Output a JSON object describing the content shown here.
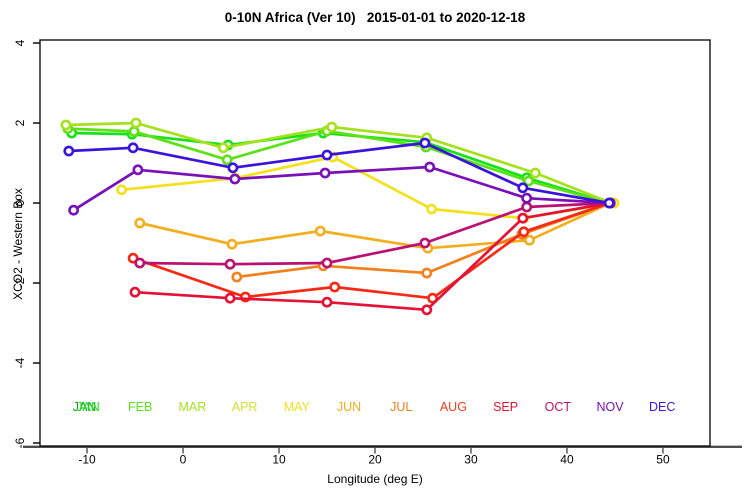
{
  "title": "0-10N Africa (Ver 10)   2015-01-01 to 2020-12-18",
  "chart_data": {
    "type": "line",
    "title": "0-10N Africa (Ver 10)   2015-01-01 to 2020-12-18",
    "xlabel": "Longitude (deg E)",
    "ylabel": "XCO2 - Western Box",
    "xlim": [
      -14.9,
      54.9
    ],
    "ylim": [
      -6.075,
      4.075
    ],
    "x_ticks": [
      -10,
      0,
      10,
      20,
      30,
      40,
      50
    ],
    "y_ticks": [
      -6,
      -4,
      -2,
      0,
      2,
      4
    ],
    "grid": false,
    "marker": "open-circle",
    "legend_position": "inside-bottom",
    "legend_y_value": -5.1,
    "months": [
      {
        "label": "JAN",
        "color": "#17E117",
        "double_printed": true,
        "shadow_color": "#0E9E0E"
      },
      {
        "label": "FEB",
        "color": "#5CE117"
      },
      {
        "label": "MAR",
        "color": "#A5E11C"
      },
      {
        "label": "APR",
        "color": "#D6E12E"
      },
      {
        "label": "MAY",
        "color": "#F2E11C"
      },
      {
        "label": "JUN",
        "color": "#F2AE1C"
      },
      {
        "label": "JUL",
        "color": "#F2801C"
      },
      {
        "label": "AUG",
        "color": "#F23D1C"
      },
      {
        "label": "SEP",
        "color": "#E8152E"
      },
      {
        "label": "OCT",
        "color": "#BB1272"
      },
      {
        "label": "NOV",
        "color": "#7A10B8"
      },
      {
        "label": "DEC",
        "color": "#3A14DD"
      }
    ],
    "series": [
      {
        "name": "JAN",
        "color": "#17E117",
        "points": [
          [
            -11.6,
            1.75
          ],
          [
            -5.3,
            1.72
          ],
          [
            4.7,
            1.45
          ],
          [
            14.6,
            1.75
          ],
          [
            25.2,
            1.52
          ],
          [
            35.8,
            0.63
          ],
          [
            44.4,
            0.0
          ]
        ]
      },
      {
        "name": "FEB",
        "color": "#5CE117",
        "points": [
          [
            -12.0,
            1.86
          ],
          [
            -5.1,
            1.79
          ],
          [
            4.6,
            1.08
          ],
          [
            15.0,
            1.8
          ],
          [
            25.3,
            1.4
          ],
          [
            36.0,
            0.55
          ],
          [
            44.4,
            0.0
          ]
        ]
      },
      {
        "name": "MAR",
        "color": "#A5E11C",
        "points": [
          [
            -12.2,
            1.95
          ],
          [
            -4.9,
            2.0
          ],
          [
            4.2,
            1.38
          ],
          [
            15.5,
            1.9
          ],
          [
            25.4,
            1.63
          ],
          [
            36.7,
            0.75
          ],
          [
            44.6,
            0.0
          ]
        ]
      },
      {
        "name": "MAY",
        "color": "#F2E11C",
        "points": [
          [
            -6.4,
            0.33
          ],
          [
            5.4,
            0.62
          ],
          [
            15.6,
            1.15
          ],
          [
            25.9,
            -0.15
          ],
          [
            35.5,
            -0.38
          ],
          [
            44.9,
            0.0
          ]
        ]
      },
      {
        "name": "JUN",
        "color": "#F2AE1C",
        "points": [
          [
            -4.5,
            -0.5
          ],
          [
            5.1,
            -1.03
          ],
          [
            14.3,
            -0.7
          ],
          [
            25.5,
            -1.13
          ],
          [
            36.1,
            -0.93
          ],
          [
            44.5,
            0.0
          ]
        ]
      },
      {
        "name": "JUL",
        "color": "#F2801C",
        "points": [
          [
            5.6,
            -1.85
          ],
          [
            14.6,
            -1.57
          ],
          [
            25.4,
            -1.75
          ],
          [
            35.3,
            -0.78
          ],
          [
            44.5,
            0.0
          ]
        ]
      },
      {
        "name": "AUG",
        "color": "#F52914",
        "points": [
          [
            -5.2,
            -1.38
          ],
          [
            6.5,
            -2.35
          ],
          [
            15.8,
            -2.1
          ],
          [
            26.0,
            -2.38
          ],
          [
            35.5,
            -0.72
          ],
          [
            44.5,
            0.0
          ]
        ]
      },
      {
        "name": "SEP",
        "color": "#E31236",
        "points": [
          [
            -5.0,
            -2.23
          ],
          [
            4.9,
            -2.38
          ],
          [
            15.0,
            -2.48
          ],
          [
            25.4,
            -2.67
          ],
          [
            35.4,
            -0.38
          ],
          [
            44.5,
            0.0
          ]
        ]
      },
      {
        "name": "OCT",
        "color": "#BB1272",
        "points": [
          [
            -4.5,
            -1.5
          ],
          [
            4.9,
            -1.53
          ],
          [
            15.0,
            -1.5
          ],
          [
            25.2,
            -1.0
          ],
          [
            35.8,
            -0.1
          ],
          [
            44.5,
            0.0
          ]
        ]
      },
      {
        "name": "NOV",
        "color": "#7A10B8",
        "points": [
          [
            -11.4,
            -0.18
          ],
          [
            -4.7,
            0.83
          ],
          [
            5.4,
            0.6
          ],
          [
            14.8,
            0.75
          ],
          [
            25.7,
            0.9
          ],
          [
            35.8,
            0.12
          ],
          [
            44.5,
            0.0
          ]
        ]
      },
      {
        "name": "DEC",
        "color": "#3A14DD",
        "points": [
          [
            -11.9,
            1.3
          ],
          [
            -5.2,
            1.38
          ],
          [
            5.2,
            0.88
          ],
          [
            15.0,
            1.2
          ],
          [
            25.2,
            1.5
          ],
          [
            35.4,
            0.38
          ],
          [
            44.4,
            0.0
          ]
        ]
      }
    ]
  }
}
